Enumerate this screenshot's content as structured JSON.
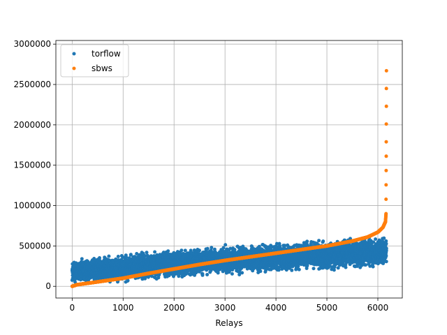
{
  "chart_data": {
    "type": "scatter",
    "title": "",
    "xlabel": "Relays",
    "ylabel": "",
    "xlim": [
      -320,
      6480
    ],
    "ylim": [
      -145000,
      3045000
    ],
    "xticks": [
      0,
      1000,
      2000,
      3000,
      4000,
      5000,
      6000
    ],
    "xtick_labels": [
      "0",
      "1000",
      "2000",
      "3000",
      "4000",
      "5000",
      "6000"
    ],
    "yticks": [
      0,
      500000,
      1000000,
      1500000,
      2000000,
      2500000,
      3000000
    ],
    "ytick_labels": [
      "0",
      "500000",
      "1000000",
      "1500000",
      "2000000",
      "2500000",
      "3000000"
    ],
    "grid": true,
    "legend_position": "upper-left",
    "n_points": 6170,
    "series": [
      {
        "name": "torflow",
        "color": "#1f77b4",
        "description_trend": "noisy band rising slowly",
        "trend_x": [
          0,
          1000,
          2000,
          3000,
          4000,
          5000,
          6000,
          6170
        ],
        "trend_center": [
          180000,
          230000,
          280000,
          320000,
          360000,
          390000,
          420000,
          430000
        ],
        "trend_spread": [
          170000,
          200000,
          200000,
          200000,
          200000,
          210000,
          210000,
          210000
        ],
        "y_min": 0,
        "y_max": 630000
      },
      {
        "name": "sbws",
        "color": "#ff7f0e",
        "description_trend": "sorted ascending curve",
        "x": [
          0,
          100,
          500,
          1000,
          1500,
          2000,
          2500,
          3000,
          3500,
          4000,
          4500,
          5000,
          5500,
          5800,
          6000,
          6100,
          6150,
          6160,
          6165,
          6170
        ],
        "y": [
          0,
          20000,
          55000,
          100000,
          160000,
          215000,
          270000,
          320000,
          365000,
          410000,
          455000,
          500000,
          560000,
          610000,
          670000,
          730000,
          800000,
          900000,
          1790000,
          2890000
        ]
      }
    ]
  }
}
